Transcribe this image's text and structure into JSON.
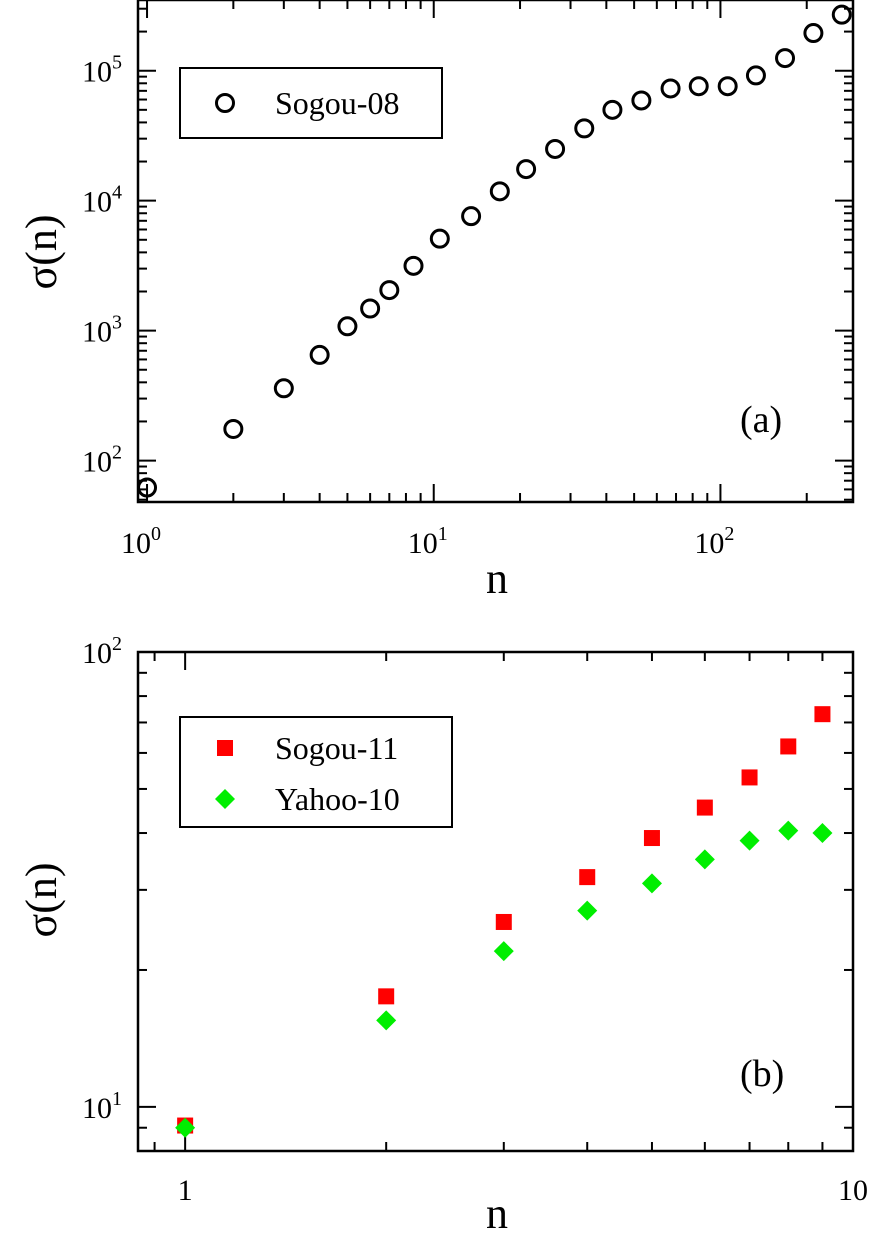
{
  "chart_data": [
    {
      "type": "scatter",
      "panel_label": "(a)",
      "xlabel": "n",
      "ylabel": "σ(n)",
      "xscale": "log",
      "yscale": "log",
      "xlim": [
        0.93,
        290
      ],
      "ylim": [
        48,
        350000
      ],
      "grid": false,
      "legend_position": "top-left",
      "x_ticks": [
        {
          "base": "10",
          "exp": "0",
          "value": 1
        },
        {
          "base": "10",
          "exp": "1",
          "value": 10
        },
        {
          "base": "10",
          "exp": "2",
          "value": 100
        }
      ],
      "y_ticks": [
        {
          "base": "10",
          "exp": "2",
          "value": 100
        },
        {
          "base": "10",
          "exp": "3",
          "value": 1000
        },
        {
          "base": "10",
          "exp": "4",
          "value": 10000
        },
        {
          "base": "10",
          "exp": "5",
          "value": 100000
        }
      ],
      "series": [
        {
          "name": "Sogou-08",
          "marker": "open-circle",
          "color": "#000000",
          "x": [
            1,
            2,
            3,
            4,
            5,
            6,
            7,
            8.5,
            10.5,
            13.5,
            17,
            21,
            26.5,
            33.5,
            42,
            53,
            67,
            84,
            106,
            133,
            168,
            211,
            265
          ],
          "y": [
            62,
            175,
            360,
            650,
            1080,
            1480,
            2050,
            3150,
            5100,
            7600,
            11800,
            17500,
            25000,
            36000,
            50000,
            59000,
            73000,
            76000,
            76000,
            92000,
            125000,
            195000,
            270000
          ]
        }
      ]
    },
    {
      "type": "scatter",
      "panel_label": "(b)",
      "xlabel": "n",
      "ylabel": "σ(n)",
      "xscale": "log",
      "yscale": "log",
      "xlim": [
        0.85,
        10
      ],
      "ylim": [
        8,
        100
      ],
      "grid": false,
      "legend_position": "top-left",
      "x_ticks": [
        {
          "label": "1",
          "value": 1
        },
        {
          "label": "10",
          "value": 10
        }
      ],
      "y_ticks": [
        {
          "base": "10",
          "exp": "1",
          "value": 10
        },
        {
          "base": "10",
          "exp": "2",
          "value": 100
        }
      ],
      "series": [
        {
          "name": "Sogou-11",
          "marker": "filled-square",
          "color": "#ff0000",
          "x": [
            1,
            2,
            3,
            4,
            5,
            6,
            7,
            8,
            9
          ],
          "y": [
            9.1,
            17.5,
            25.5,
            32,
            39,
            45.5,
            53,
            62,
            73
          ]
        },
        {
          "name": "Yahoo-10",
          "marker": "filled-diamond",
          "color": "#00ee00",
          "x": [
            1,
            2,
            3,
            4,
            5,
            6,
            7,
            8,
            9
          ],
          "y": [
            9.0,
            15.5,
            22,
            27,
            31,
            35,
            38.5,
            40.5,
            40
          ]
        }
      ]
    }
  ]
}
